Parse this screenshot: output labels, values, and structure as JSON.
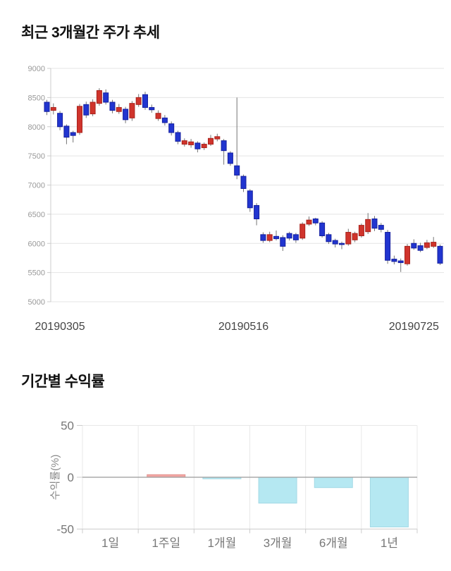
{
  "page": {
    "background": "#ffffff"
  },
  "chart_data": [
    {
      "type": "candlestick",
      "title": "최근 3개월간 주가 추세",
      "ylim": [
        5000,
        9000
      ],
      "y_ticks": [
        9000,
        8500,
        8000,
        7500,
        7000,
        6500,
        6000,
        5500,
        5000
      ],
      "x_ticks": [
        {
          "label": "20190305",
          "index": 2
        },
        {
          "label": "20190516",
          "index": 30
        },
        {
          "label": "20190725",
          "index": 56
        }
      ],
      "grid": true,
      "colors": {
        "up_fill": "#d0342c",
        "up_border": "#a8231d",
        "down_fill": "#2135d0",
        "down_border": "#141f9e",
        "wick": "#757575",
        "grid_line": "#e4e4e4",
        "axis_line": "#cccccc",
        "y_tick_text": "#999999",
        "x_tick_text": "#444444"
      },
      "candles_ohlc": [
        [
          8420,
          8460,
          8200,
          8260
        ],
        [
          8280,
          8400,
          8210,
          8330
        ],
        [
          8230,
          8270,
          7940,
          8000
        ],
        [
          8010,
          8040,
          7700,
          7820
        ],
        [
          7900,
          7930,
          7730,
          7850
        ],
        [
          7900,
          8390,
          7860,
          8350
        ],
        [
          8380,
          8430,
          8150,
          8200
        ],
        [
          8220,
          8470,
          8180,
          8420
        ],
        [
          8400,
          8660,
          8360,
          8620
        ],
        [
          8580,
          8640,
          8380,
          8420
        ],
        [
          8420,
          8460,
          8230,
          8280
        ],
        [
          8260,
          8390,
          8220,
          8330
        ],
        [
          8300,
          8340,
          8060,
          8120
        ],
        [
          8150,
          8440,
          8100,
          8400
        ],
        [
          8380,
          8560,
          8340,
          8500
        ],
        [
          8550,
          8600,
          8290,
          8330
        ],
        [
          8330,
          8380,
          8240,
          8290
        ],
        [
          8140,
          8280,
          8100,
          8230
        ],
        [
          8150,
          8200,
          8020,
          8070
        ],
        [
          8050,
          8090,
          7850,
          7900
        ],
        [
          7900,
          7930,
          7700,
          7750
        ],
        [
          7700,
          7800,
          7660,
          7760
        ],
        [
          7690,
          7790,
          7640,
          7740
        ],
        [
          7720,
          7750,
          7560,
          7620
        ],
        [
          7640,
          7730,
          7600,
          7700
        ],
        [
          7700,
          7860,
          7670,
          7800
        ],
        [
          7790,
          7880,
          7750,
          7830
        ],
        [
          7760,
          7790,
          7350,
          7590
        ],
        [
          7550,
          7580,
          7330,
          7370
        ],
        [
          7330,
          8500,
          7100,
          7170
        ],
        [
          7150,
          7180,
          6880,
          6940
        ],
        [
          6900,
          6930,
          6540,
          6610
        ],
        [
          6650,
          6690,
          6310,
          6420
        ],
        [
          6150,
          6190,
          6010,
          6050
        ],
        [
          6050,
          6200,
          6020,
          6150
        ],
        [
          6120,
          6220,
          6050,
          6080
        ],
        [
          6100,
          6140,
          5870,
          5950
        ],
        [
          6170,
          6200,
          6050,
          6090
        ],
        [
          6150,
          6180,
          6010,
          6060
        ],
        [
          6090,
          6360,
          6060,
          6330
        ],
        [
          6330,
          6460,
          6300,
          6400
        ],
        [
          6420,
          6440,
          6310,
          6350
        ],
        [
          6350,
          6380,
          6100,
          6130
        ],
        [
          6150,
          6180,
          5990,
          6030
        ],
        [
          6050,
          6080,
          5930,
          5990
        ],
        [
          6000,
          6030,
          5900,
          5980
        ],
        [
          5990,
          6250,
          5960,
          6190
        ],
        [
          6060,
          6200,
          6020,
          6170
        ],
        [
          6130,
          6340,
          6100,
          6310
        ],
        [
          6200,
          6520,
          6160,
          6410
        ],
        [
          6420,
          6470,
          6210,
          6260
        ],
        [
          6310,
          6350,
          6190,
          6240
        ],
        [
          6190,
          6230,
          5650,
          5710
        ],
        [
          5730,
          5790,
          5640,
          5690
        ],
        [
          5700,
          5740,
          5510,
          5670
        ],
        [
          5650,
          5990,
          5620,
          5950
        ],
        [
          6000,
          6070,
          5890,
          5920
        ],
        [
          5960,
          6010,
          5850,
          5880
        ],
        [
          5930,
          6060,
          5900,
          6010
        ],
        [
          5950,
          6110,
          5920,
          6020
        ],
        [
          5950,
          5980,
          5630,
          5660
        ]
      ]
    },
    {
      "type": "bar",
      "title": "기간별 수익률",
      "categories": [
        "1일",
        "1주일",
        "1개월",
        "3개월",
        "6개월",
        "1년"
      ],
      "values": [
        0,
        2.5,
        -1.5,
        -25,
        -10,
        -48
      ],
      "ylabel": "수익률(%)",
      "y_ticks": [
        50,
        0,
        -50
      ],
      "ylim": [
        -50,
        50
      ],
      "grid": true,
      "legend": "none",
      "colors": {
        "positive_fill": "#f2a6a3",
        "positive_border": "#e39490",
        "negative_fill": "#b5e8f2",
        "negative_border": "#a3d9e5",
        "zero_line": "#9a9a9a",
        "grid_line": "#e8e8e8",
        "axis_line": "#cccccc",
        "tick_text": "#777777",
        "axis_title_text": "#888888"
      }
    }
  ]
}
